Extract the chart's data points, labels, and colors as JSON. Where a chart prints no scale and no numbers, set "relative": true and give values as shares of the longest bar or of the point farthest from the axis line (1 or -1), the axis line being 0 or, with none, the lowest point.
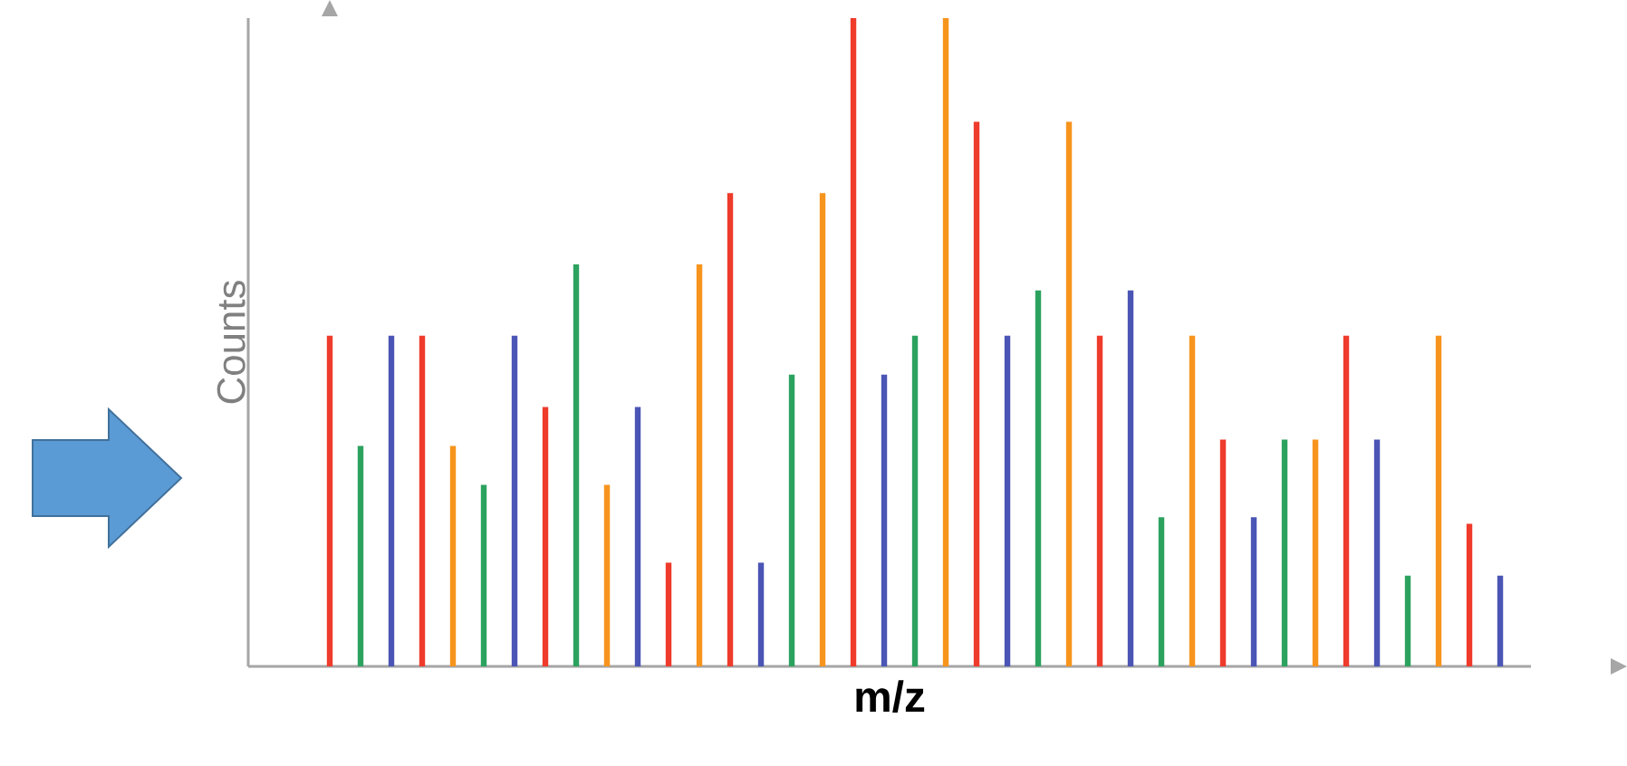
{
  "chart_data": {
    "type": "bar",
    "relative": true,
    "xlabel": "m/z",
    "ylabel": "Counts",
    "categories": [
      null,
      null,
      null,
      null,
      null,
      null,
      null,
      null,
      null,
      null,
      null,
      null,
      null,
      null,
      null,
      null,
      null,
      null,
      null,
      null,
      null,
      null,
      null,
      null,
      null,
      null,
      null,
      null,
      null,
      null,
      null,
      null,
      null,
      null,
      null,
      null,
      null,
      null,
      null
    ],
    "values": [
      0.51,
      0.34,
      0.51,
      0.51,
      0.34,
      0.28,
      0.51,
      0.4,
      0.62,
      0.28,
      0.4,
      0.16,
      0.62,
      0.73,
      0.16,
      0.45,
      0.73,
      1,
      0.45,
      0.51,
      1,
      0.84,
      0.51,
      0.58,
      0.84,
      0.51,
      0.58,
      0.23,
      0.51,
      0.35,
      0.23,
      0.35,
      0.35,
      0.51,
      0.35,
      0.14,
      0.51,
      0.22,
      0.14
    ],
    "colors": [
      "#ef3b2c",
      "#2ca25f",
      "#4b55b5",
      "#ef3b2c",
      "#f7941d",
      "#2ca25f",
      "#4b55b5",
      "#ef3b2c",
      "#2ca25f",
      "#f7941d",
      "#4b55b5",
      "#ef3b2c",
      "#f7941d",
      "#ef3b2c",
      "#4b55b5",
      "#2ca25f",
      "#f7941d",
      "#ef3b2c",
      "#4b55b5",
      "#2ca25f",
      "#f7941d",
      "#ef3b2c",
      "#4b55b5",
      "#2ca25f",
      "#f7941d",
      "#ef3b2c",
      "#4b55b5",
      "#2ca25f",
      "#f7941d",
      "#ef3b2c",
      "#4b55b5",
      "#2ca25f",
      "#f7941d",
      "#ef3b2c",
      "#4b55b5",
      "#2ca25f",
      "#f7941d",
      "#ef3b2c",
      "#4b55b5"
    ]
  }
}
